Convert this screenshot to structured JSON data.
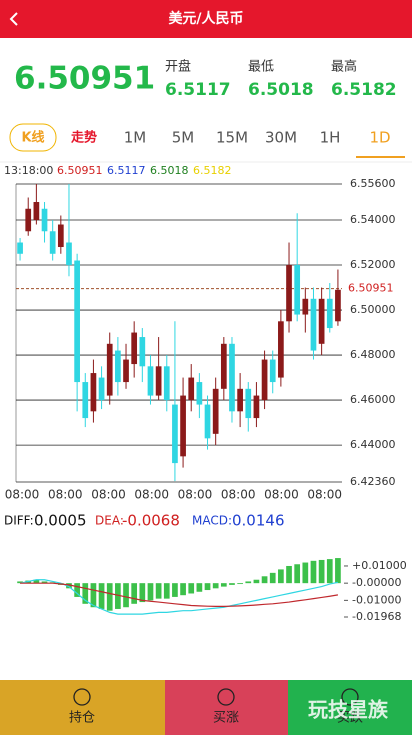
{
  "header": {
    "title": "美元/人民币"
  },
  "quote": {
    "price": "6.50951",
    "open_label": "开盘",
    "open": "6.5117",
    "low_label": "最低",
    "low": "6.5018",
    "high_label": "最高",
    "high": "6.5182"
  },
  "tabs": [
    "K线",
    "走势",
    "1M",
    "5M",
    "15M",
    "30M",
    "1H",
    "1D"
  ],
  "info": {
    "time": "13:18:00",
    "price": "6.50951",
    "open": "6.5117",
    "low": "6.5018",
    "high": "6.5182"
  },
  "macd_info": {
    "diff_label": "DIFF:",
    "diff": "0.0005",
    "dea_label": "DEA:",
    "dea": "-0.0068",
    "macd_label": "MACD:",
    "macd": "0.0146"
  },
  "chart_data": [
    {
      "type": "candlestick",
      "up_color": "#8b1a1a",
      "down_color": "#2fd6e2",
      "x_tick_labels": [
        "08:00",
        "08:00",
        "08:00",
        "08:00",
        "08:00",
        "08:00",
        "08:00",
        "08:00"
      ],
      "open": [
        6.53,
        6.535,
        6.54,
        6.545,
        6.535,
        6.528,
        6.53,
        6.522,
        6.468,
        6.455,
        6.47,
        6.462,
        6.482,
        6.468,
        6.476,
        6.488,
        6.475,
        6.462,
        6.475,
        6.458,
        6.435,
        6.46,
        6.468,
        6.458,
        6.445,
        6.465,
        6.485,
        6.455,
        6.465,
        6.452,
        6.46,
        6.478,
        6.47,
        6.495,
        6.52,
        6.498,
        6.505,
        6.485,
        6.505,
        6.495
      ],
      "high": [
        6.532,
        6.55,
        6.556,
        6.548,
        6.54,
        6.542,
        6.556,
        6.525,
        6.472,
        6.478,
        6.475,
        6.49,
        6.488,
        6.485,
        6.495,
        6.492,
        6.48,
        6.488,
        6.48,
        6.495,
        6.47,
        6.476,
        6.472,
        6.462,
        6.47,
        6.488,
        6.488,
        6.472,
        6.468,
        6.468,
        6.482,
        6.482,
        6.5,
        6.53,
        6.543,
        6.51,
        6.51,
        6.51,
        6.512,
        6.518
      ],
      "low": [
        6.522,
        6.533,
        6.538,
        6.53,
        6.522,
        6.525,
        6.515,
        6.455,
        6.448,
        6.45,
        6.456,
        6.458,
        6.462,
        6.465,
        6.47,
        6.468,
        6.458,
        6.46,
        6.455,
        6.424,
        6.43,
        6.455,
        6.452,
        6.438,
        6.44,
        6.46,
        6.45,
        6.448,
        6.446,
        6.448,
        6.456,
        6.463,
        6.466,
        6.49,
        6.495,
        6.49,
        6.478,
        6.48,
        6.49,
        6.493
      ],
      "close": [
        6.525,
        6.545,
        6.548,
        6.535,
        6.525,
        6.538,
        6.52,
        6.468,
        6.452,
        6.472,
        6.46,
        6.485,
        6.468,
        6.478,
        6.49,
        6.475,
        6.462,
        6.475,
        6.46,
        6.432,
        6.462,
        6.47,
        6.458,
        6.443,
        6.465,
        6.485,
        6.455,
        6.465,
        6.452,
        6.462,
        6.478,
        6.468,
        6.495,
        6.52,
        6.498,
        6.505,
        6.482,
        6.505,
        6.492,
        6.509
      ],
      "ylim": [
        6.4236,
        6.556
      ],
      "yticks": [
        {
          "value": 6.556,
          "label": "6.55600"
        },
        {
          "value": 6.54,
          "label": "6.54000"
        },
        {
          "value": 6.52,
          "label": "6.52000"
        },
        {
          "value": 6.5,
          "label": "6.50000"
        },
        {
          "value": 6.48,
          "label": "6.48000"
        },
        {
          "value": 6.46,
          "label": "6.46000"
        },
        {
          "value": 6.44,
          "label": "6.44000"
        },
        {
          "value": 6.4236,
          "label": "6.42360"
        }
      ],
      "last_price": 6.50951,
      "last_price_color": "#a0522d"
    },
    {
      "type": "macd",
      "hist_color": "#3cc04a",
      "diff_color": "#2fd6e2",
      "dea_color": "#c0282d",
      "histogram": [
        0.001,
        0.0015,
        0.002,
        0.001,
        0.0005,
        -0.001,
        -0.003,
        -0.008,
        -0.012,
        -0.014,
        -0.015,
        -0.016,
        -0.015,
        -0.014,
        -0.012,
        -0.011,
        -0.01,
        -0.009,
        -0.009,
        -0.008,
        -0.007,
        -0.006,
        -0.005,
        -0.004,
        -0.003,
        -0.002,
        -0.001,
        -0.0005,
        0.001,
        0.002,
        0.004,
        0.006,
        0.008,
        0.01,
        0.011,
        0.012,
        0.013,
        0.0135,
        0.014,
        0.0146
      ],
      "diff": [
        0,
        0.001,
        0.002,
        0.002,
        0.001,
        0,
        -0.002,
        -0.006,
        -0.01,
        -0.013,
        -0.015,
        -0.017,
        -0.018,
        -0.018,
        -0.018,
        -0.018,
        -0.0175,
        -0.017,
        -0.017,
        -0.0165,
        -0.016,
        -0.016,
        -0.0155,
        -0.015,
        -0.0145,
        -0.014,
        -0.013,
        -0.012,
        -0.011,
        -0.01,
        -0.009,
        -0.008,
        -0.007,
        -0.006,
        -0.005,
        -0.004,
        -0.003,
        -0.002,
        -0.0005,
        0.0005
      ],
      "dea": [
        0,
        0,
        0,
        0,
        0,
        -0.0005,
        -0.001,
        -0.002,
        -0.003,
        -0.004,
        -0.005,
        -0.006,
        -0.007,
        -0.008,
        -0.009,
        -0.01,
        -0.0105,
        -0.011,
        -0.0115,
        -0.012,
        -0.0125,
        -0.013,
        -0.0132,
        -0.0134,
        -0.0135,
        -0.0135,
        -0.0134,
        -0.0132,
        -0.013,
        -0.0127,
        -0.0123,
        -0.012,
        -0.0115,
        -0.011,
        -0.0103,
        -0.0097,
        -0.009,
        -0.0083,
        -0.0076,
        -0.0068
      ],
      "ylim": [
        -0.01968,
        0.0158
      ],
      "yticks": [
        {
          "value": 0.01,
          "label": "+0.01000"
        },
        {
          "value": 0,
          "label": "-0.00000"
        },
        {
          "value": -0.01,
          "label": "-0.01000"
        },
        {
          "value": -0.01968,
          "label": "-0.01968"
        }
      ]
    }
  ],
  "buttons": [
    "持仓",
    "买涨",
    "买跌"
  ],
  "watermark": "玩技星族"
}
